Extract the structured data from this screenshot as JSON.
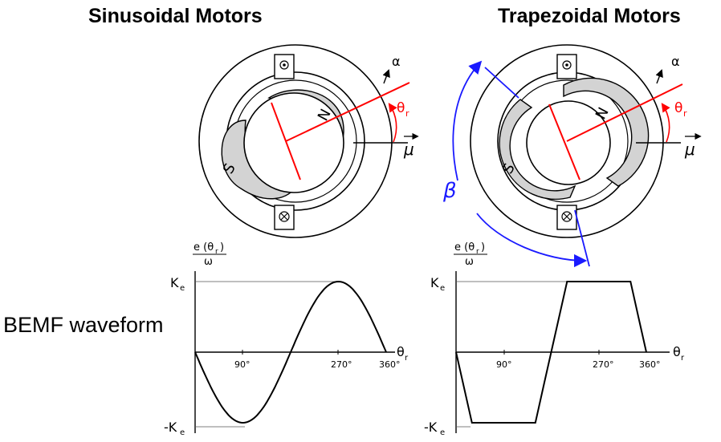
{
  "titles": {
    "left": "Sinusoidal Motors",
    "right": "Trapezoidal Motors"
  },
  "row_label": "BEMF waveform",
  "motor_labels": {
    "north": "N",
    "south": "S",
    "alpha": "α",
    "theta_r": "θ",
    "theta_sub": "r",
    "mu": "μ",
    "beta": "β"
  },
  "graph_labels": {
    "ylabel_num": "e (θ",
    "ylabel_num_sub": "r",
    "ylabel_num_close": ")",
    "ylabel_den": "ω",
    "ke": "K",
    "ke_sub": "e",
    "neg_ke": "-K",
    "xaxis": "θ",
    "xaxis_sub": "r",
    "ticks": [
      "90°",
      "270°",
      "360°"
    ]
  },
  "colors": {
    "rotor_line": "#ff0000",
    "beta_annotation": "#1a1aff",
    "magnet_fill": "#d3d3d3",
    "line": "#000000"
  },
  "chart_data": [
    {
      "type": "line",
      "name": "sinusoidal",
      "x": [
        0,
        30,
        60,
        90,
        120,
        150,
        180,
        210,
        240,
        270,
        300,
        330,
        360
      ],
      "y": [
        0,
        -0.5,
        -0.866,
        -1,
        -0.866,
        -0.5,
        0,
        0.5,
        0.866,
        1,
        0.866,
        0.5,
        0
      ],
      "xlim": [
        0,
        360
      ],
      "ylim": [
        -1,
        1
      ],
      "ytick_labels": [
        "K_e",
        "-K_e"
      ]
    },
    {
      "type": "line",
      "name": "trapezoidal",
      "x": [
        0,
        15,
        30,
        150,
        165,
        180,
        195,
        210,
        330,
        345,
        360
      ],
      "y": [
        0,
        -0.5,
        -1,
        -1,
        -0.5,
        0,
        0.5,
        1,
        1,
        0.5,
        0
      ],
      "xlim": [
        0,
        360
      ],
      "ylim": [
        -1,
        1
      ],
      "ytick_labels": [
        "K_e",
        "-K_e"
      ]
    }
  ]
}
